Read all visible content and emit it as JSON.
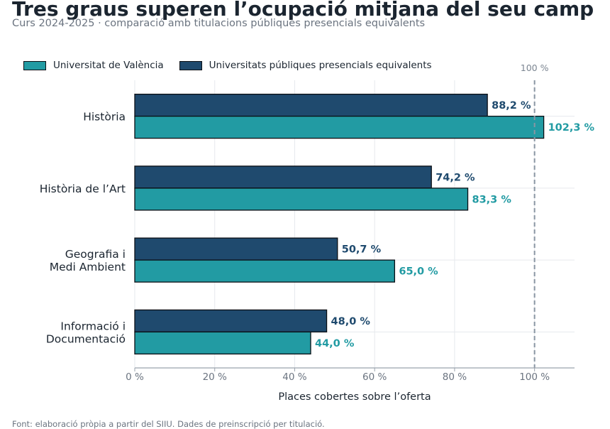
{
  "header": {
    "title": "Tres graus superen l’ocupació mitjana del seu camp",
    "subtitle": "Curs 2024-2025 · comparació amb titulacions públiques presencials equivalents"
  },
  "footer": {
    "source": "Font: elaboració pròpia a partir del SIIU. Dades de preinscripció per titulació."
  },
  "chart_data": {
    "type": "bar",
    "orientation": "horizontal",
    "categories": [
      [
        "Història"
      ],
      [
        "Història de l’Art"
      ],
      [
        "Geografia i",
        "Medi Ambient"
      ],
      [
        "Informació i",
        "Documentació"
      ]
    ],
    "series": [
      {
        "name": "Universitats públiques presencials equivalents",
        "color": "#1f4a6e",
        "label_color": "#1f4a6e",
        "values": [
          88.2,
          74.2,
          50.7,
          48.0
        ],
        "labels": [
          "88,2 %",
          "74,2 %",
          "50,7 %",
          "48,0 %"
        ]
      },
      {
        "name": "Universitat de València",
        "color": "#229ba3",
        "label_color": "#229ba3",
        "values": [
          102.3,
          83.3,
          65.0,
          44.0
        ],
        "labels": [
          "102,3 %",
          "83,3 %",
          "65,0 %",
          "44,0 %"
        ]
      }
    ],
    "legend_order": [
      1,
      0
    ],
    "legend_position": "top-left",
    "xlabel": "Places cobertes sobre l’oferta",
    "xlim": [
      0,
      110
    ],
    "xticks": [
      0,
      20,
      40,
      60,
      80,
      100
    ],
    "xtick_labels": [
      "0 %",
      "20 %",
      "40 %",
      "60 %",
      "80 %",
      "100 %"
    ],
    "grid": true,
    "reference_line": {
      "value": 100,
      "label": "100 %",
      "style": "dashed",
      "color": "#8a96a3"
    }
  }
}
